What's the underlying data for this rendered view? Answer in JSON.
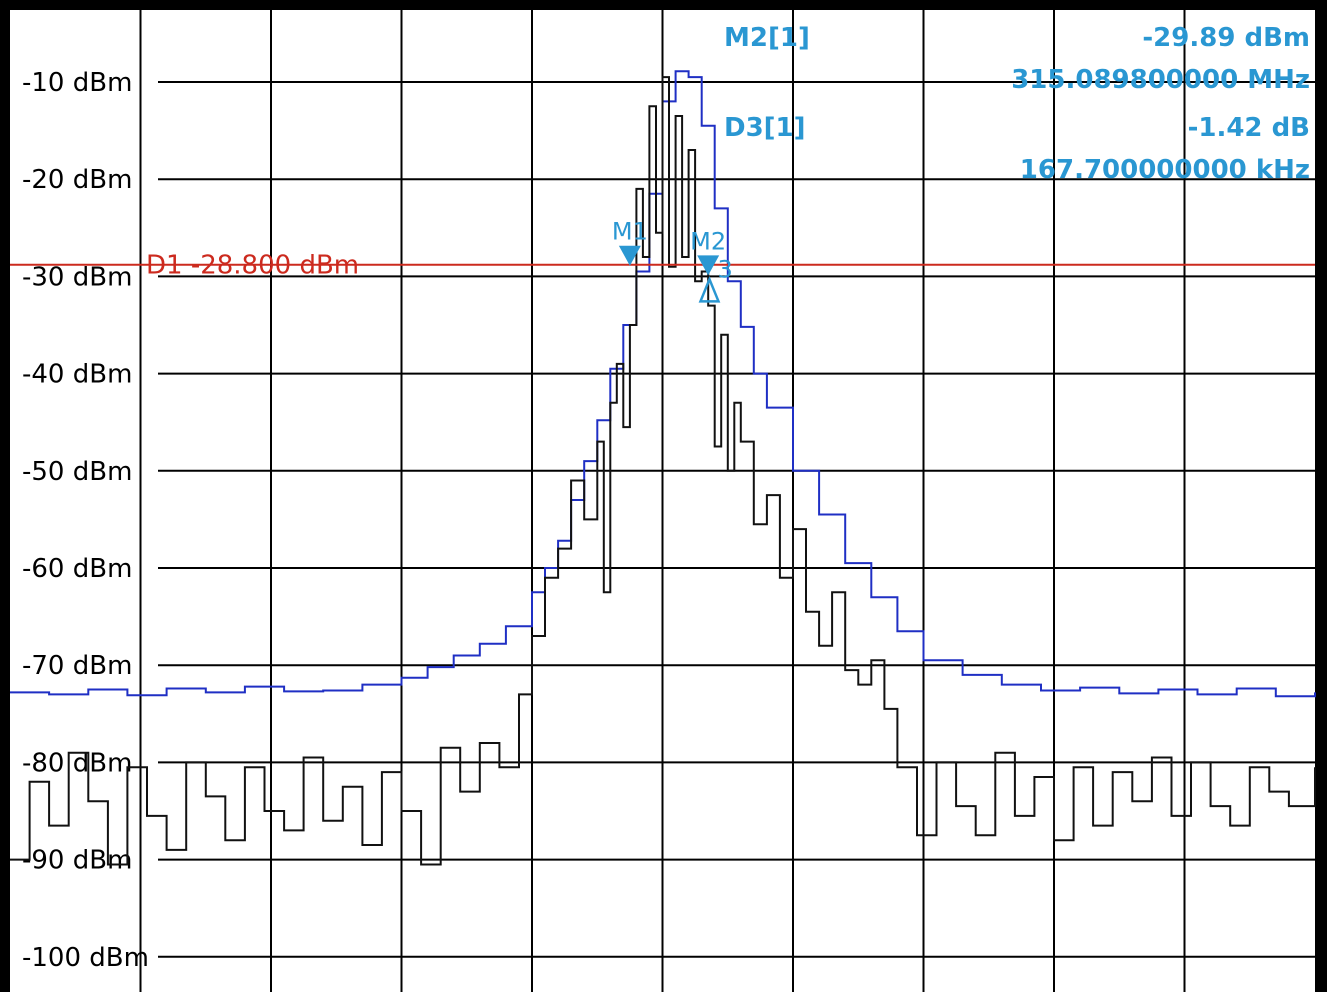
{
  "chart_data": {
    "type": "line",
    "ylabel_unit": "dBm",
    "ylim": [
      -100,
      -5
    ],
    "y_ticks": [
      {
        "value": -10,
        "label": "-10 dBm"
      },
      {
        "value": -20,
        "label": "-20 dBm"
      },
      {
        "value": -30,
        "label": "-30 dBm"
      },
      {
        "value": -40,
        "label": "-40 dBm"
      },
      {
        "value": -50,
        "label": "-50 dBm"
      },
      {
        "value": -60,
        "label": "-60 dBm"
      },
      {
        "value": -70,
        "label": "-70 dBm"
      },
      {
        "value": -80,
        "label": "-80 dBm"
      },
      {
        "value": -90,
        "label": "-90 dBm"
      },
      {
        "value": -100,
        "label": "-100 dBm"
      }
    ],
    "x_divisions": 10,
    "grid": true,
    "display_line": {
      "label": "D1",
      "value_text": "-28.800 dBm",
      "value": -28.8,
      "color": "#cc2a1e"
    },
    "series": [
      {
        "color": "#1f2fc4",
        "x": [
          0,
          3,
          6,
          9,
          12,
          15,
          18,
          21,
          24,
          27,
          30,
          32,
          34,
          36,
          38,
          40,
          41,
          42,
          43,
          44,
          45,
          46,
          47,
          48,
          49,
          50,
          51,
          52,
          53,
          54,
          55,
          56,
          57,
          58,
          60,
          62,
          64,
          66,
          68,
          70,
          73,
          76,
          79,
          82,
          85,
          88,
          91,
          94,
          97,
          100
        ],
        "y": [
          -72.8,
          -73.0,
          -72.5,
          -73.1,
          -72.4,
          -72.8,
          -72.2,
          -72.7,
          -72.6,
          -72.0,
          -71.3,
          -70.2,
          -69.0,
          -67.8,
          -66.0,
          -62.5,
          -60.0,
          -57.2,
          -53.0,
          -49.0,
          -44.8,
          -39.5,
          -35.0,
          -29.5,
          -21.5,
          -12.0,
          -8.9,
          -9.5,
          -14.5,
          -23.0,
          -30.5,
          -35.2,
          -40.0,
          -43.5,
          -50.0,
          -54.5,
          -59.5,
          -63.0,
          -66.5,
          -69.5,
          -71.0,
          -72.0,
          -72.6,
          -72.3,
          -72.9,
          -72.5,
          -73.0,
          -72.4,
          -73.2,
          -72.8
        ]
      },
      {
        "color": "#111111",
        "x": [
          0,
          1.5,
          3,
          4.5,
          6,
          7.5,
          9,
          10.5,
          12,
          13.5,
          15,
          16.5,
          18,
          19.5,
          21,
          22.5,
          24,
          25.5,
          27,
          28.5,
          30,
          31.5,
          33,
          34.5,
          36,
          37.5,
          39,
          40,
          41,
          42,
          43,
          44,
          45,
          45.5,
          46,
          46.5,
          47,
          47.5,
          48,
          48.5,
          49,
          49.5,
          50,
          50.5,
          51,
          51.5,
          52,
          52.5,
          53,
          53.5,
          54,
          54.5,
          55,
          55.5,
          56,
          57,
          58,
          59,
          60,
          61,
          62,
          63,
          64,
          65,
          66,
          67,
          68,
          69.5,
          71,
          72.5,
          74,
          75.5,
          77,
          78.5,
          80,
          81.5,
          83,
          84.5,
          86,
          87.5,
          89,
          90.5,
          92,
          93.5,
          95,
          96.5,
          98,
          100
        ],
        "y": [
          -90.0,
          -82.0,
          -86.5,
          -79.0,
          -84.0,
          -90.5,
          -80.5,
          -85.5,
          -89.0,
          -80.0,
          -83.5,
          -88.0,
          -80.5,
          -85.0,
          -87.0,
          -79.5,
          -86.0,
          -82.5,
          -88.5,
          -81.0,
          -85.0,
          -90.5,
          -78.5,
          -83.0,
          -78.0,
          -80.5,
          -73.0,
          -67.0,
          -61.0,
          -58.0,
          -51.0,
          -55.0,
          -47.0,
          -62.5,
          -43.0,
          -39.0,
          -45.5,
          -35.0,
          -21.0,
          -28.0,
          -12.5,
          -25.5,
          -9.5,
          -29.0,
          -13.5,
          -28.0,
          -17.0,
          -30.5,
          -29.5,
          -33.0,
          -47.5,
          -36.0,
          -50.0,
          -43.0,
          -47.0,
          -55.5,
          -52.5,
          -61.0,
          -56.0,
          -64.5,
          -68.0,
          -62.5,
          -70.5,
          -72.0,
          -69.5,
          -74.5,
          -80.5,
          -87.5,
          -80.0,
          -84.5,
          -87.5,
          -79.0,
          -85.5,
          -81.5,
          -88.0,
          -80.5,
          -86.5,
          -81.0,
          -84.0,
          -79.5,
          -85.5,
          -80.0,
          -84.5,
          -86.5,
          -80.5,
          -83.0,
          -84.5,
          -80.5
        ]
      }
    ],
    "markers": [
      {
        "label": "M1",
        "x": 47.5,
        "y": -28.9,
        "symbol": "down-triangle"
      },
      {
        "label": "M2",
        "x": 53.5,
        "y": -29.89,
        "symbol": "down-triangle"
      },
      {
        "label": "D3",
        "x": 53.6,
        "y": -30.3,
        "symbol": "up-triangle-outline"
      }
    ],
    "annotations": {
      "m2_label": "M2[1]",
      "m2_value": "-29.89 dBm",
      "m2_freq": "315.089800000 MHz",
      "d3_label": "D3[1]",
      "d3_value": "-1.42 dB",
      "d3_freq": "167.700000000 kHz",
      "marker_tag_m1": "M1",
      "marker_tag_m2": "M2",
      "marker_tag_d3": "3"
    }
  }
}
